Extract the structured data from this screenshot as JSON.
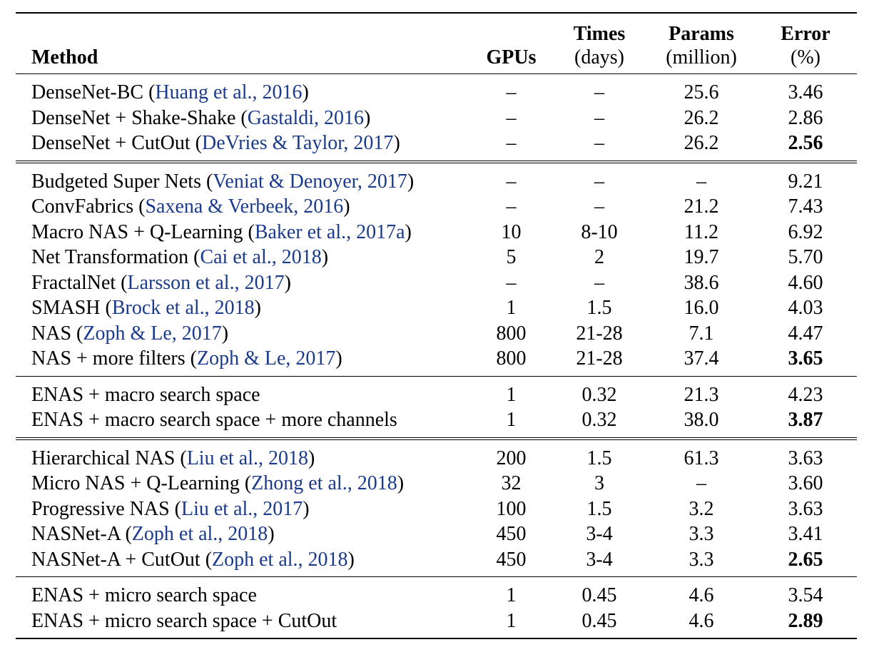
{
  "header": {
    "method": "Method",
    "gpus": "GPUs",
    "times": "Times",
    "times_unit": "(days)",
    "params": "Params",
    "params_unit": "(million)",
    "error": "Error",
    "error_unit": "(%)"
  },
  "groups": [
    [
      {
        "name": "DenseNet-BC",
        "cite": "Huang et al., 2016",
        "gpus": "–",
        "times": "–",
        "params": "25.6",
        "error": "3.46",
        "best": false
      },
      {
        "name": "DenseNet + Shake-Shake",
        "cite": "Gastaldi, 2016",
        "gpus": "–",
        "times": "–",
        "params": "26.2",
        "error": "2.86",
        "best": false
      },
      {
        "name": "DenseNet + CutOut",
        "cite": "DeVries & Taylor, 2017",
        "gpus": "–",
        "times": "–",
        "params": "26.2",
        "error": "2.56",
        "best": true
      }
    ],
    [
      {
        "name": "Budgeted Super Nets",
        "cite": "Veniat & Denoyer, 2017",
        "gpus": "–",
        "times": "–",
        "params": "–",
        "error": "9.21",
        "best": false
      },
      {
        "name": "ConvFabrics",
        "cite": "Saxena & Verbeek, 2016",
        "gpus": "–",
        "times": "–",
        "params": "21.2",
        "error": "7.43",
        "best": false
      },
      {
        "name": "Macro NAS + Q-Learning",
        "cite": "Baker et al., 2017a",
        "gpus": "10",
        "times": "8-10",
        "params": "11.2",
        "error": "6.92",
        "best": false
      },
      {
        "name": "Net Transformation",
        "cite": "Cai et al., 2018",
        "gpus": "5",
        "times": "2",
        "params": "19.7",
        "error": "5.70",
        "best": false
      },
      {
        "name": "FractalNet",
        "cite": "Larsson et al., 2017",
        "gpus": "–",
        "times": "–",
        "params": "38.6",
        "error": "4.60",
        "best": false
      },
      {
        "name": "SMASH",
        "cite": "Brock et al., 2018",
        "gpus": "1",
        "times": "1.5",
        "params": "16.0",
        "error": "4.03",
        "best": false
      },
      {
        "name": "NAS",
        "cite": "Zoph & Le, 2017",
        "gpus": "800",
        "times": "21-28",
        "params": "7.1",
        "error": "4.47",
        "best": false
      },
      {
        "name": "NAS + more filters",
        "cite": "Zoph & Le, 2017",
        "gpus": "800",
        "times": "21-28",
        "params": "37.4",
        "error": "3.65",
        "best": true
      }
    ],
    [
      {
        "name": "ENAS + macro search space",
        "cite": "",
        "gpus": "1",
        "times": "0.32",
        "params": "21.3",
        "error": "4.23",
        "best": false
      },
      {
        "name": "ENAS + macro search space + more channels",
        "cite": "",
        "gpus": "1",
        "times": "0.32",
        "params": "38.0",
        "error": "3.87",
        "best": true
      }
    ],
    [
      {
        "name": "Hierarchical NAS",
        "cite": "Liu et al., 2018",
        "gpus": "200",
        "times": "1.5",
        "params": "61.3",
        "error": "3.63",
        "best": false
      },
      {
        "name": "Micro NAS + Q-Learning",
        "cite": "Zhong et al., 2018",
        "gpus": "32",
        "times": "3",
        "params": "–",
        "error": "3.60",
        "best": false
      },
      {
        "name": "Progressive NAS",
        "cite": "Liu et al., 2017",
        "gpus": "100",
        "times": "1.5",
        "params": "3.2",
        "error": "3.63",
        "best": false
      },
      {
        "name": "NASNet-A",
        "cite": "Zoph et al., 2018",
        "gpus": "450",
        "times": "3-4",
        "params": "3.3",
        "error": "3.41",
        "best": false
      },
      {
        "name": "NASNet-A + CutOut",
        "cite": "Zoph et al., 2018",
        "gpus": "450",
        "times": "3-4",
        "params": "3.3",
        "error": "2.65",
        "best": true
      }
    ],
    [
      {
        "name": "ENAS + micro search space",
        "cite": "",
        "gpus": "1",
        "times": "0.45",
        "params": "4.6",
        "error": "3.54",
        "best": false
      },
      {
        "name": "ENAS + micro search space + CutOut",
        "cite": "",
        "gpus": "1",
        "times": "0.45",
        "params": "4.6",
        "error": "2.89",
        "best": true
      }
    ]
  ]
}
